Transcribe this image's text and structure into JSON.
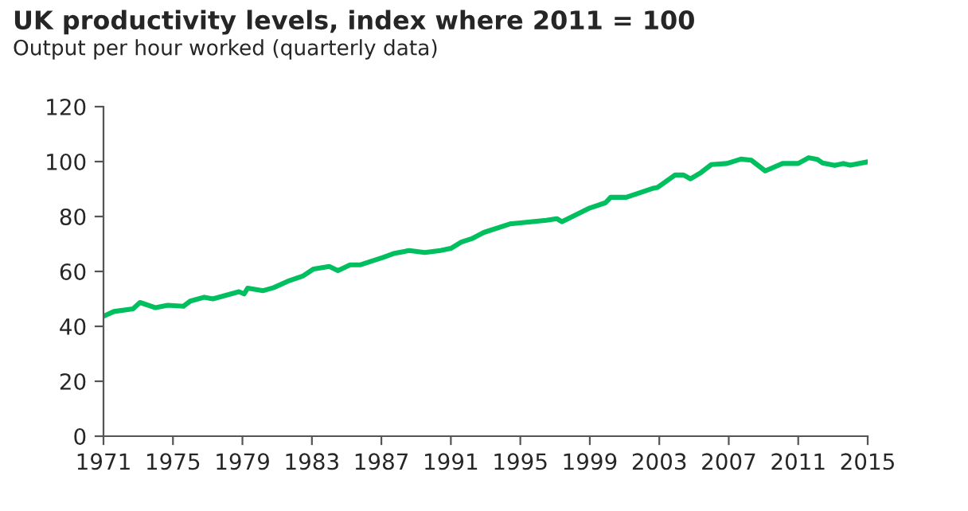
{
  "chart_data": {
    "type": "line",
    "title": "UK productivity levels, index where 2011 = 100",
    "subtitle": "Output per hour worked (quarterly data)",
    "xlim": [
      1971,
      2015
    ],
    "xticks": [
      1971,
      1975,
      1979,
      1983,
      1987,
      1991,
      1995,
      1999,
      2003,
      2007,
      2011,
      2015
    ],
    "ylim": [
      0,
      120
    ],
    "yticks": [
      0,
      20,
      40,
      60,
      80,
      100,
      120
    ],
    "grid": false,
    "marker": "none",
    "line_style": "solid",
    "series": [
      {
        "color": "#00bf5f",
        "x": [
          1971.0,
          1971.6,
          1972.7,
          1973.1,
          1974.0,
          1974.7,
          1975.6,
          1976.0,
          1976.8,
          1977.3,
          1978.8,
          1979.1,
          1979.3,
          1980.2,
          1980.8,
          1981.6,
          1982.5,
          1983.1,
          1984.0,
          1984.5,
          1985.2,
          1985.8,
          1987.1,
          1987.7,
          1988.6,
          1989.5,
          1990.4,
          1991.0,
          1991.6,
          1992.2,
          1992.9,
          1994.4,
          1995.0,
          1996.5,
          1997.1,
          1997.4,
          1999.0,
          1999.9,
          2000.2,
          2001.1,
          2002.6,
          2002.9,
          2003.9,
          2004.4,
          2004.8,
          2005.4,
          2006.0,
          2006.9,
          2007.7,
          2008.3,
          2009.1,
          2010.1,
          2011.0,
          2011.6,
          2012.1,
          2012.4,
          2013.1,
          2013.6,
          2014.0,
          2015.0
        ],
        "values": [
          43.7,
          45.4,
          46.4,
          48.7,
          46.8,
          47.7,
          47.3,
          49.2,
          50.6,
          50.0,
          52.6,
          51.8,
          53.9,
          53.0,
          54.1,
          56.4,
          58.4,
          60.9,
          61.8,
          60.3,
          62.4,
          62.4,
          65.1,
          66.5,
          67.6,
          66.9,
          67.6,
          68.4,
          70.7,
          71.9,
          74.2,
          77.3,
          77.7,
          78.6,
          79.2,
          78.1,
          83.1,
          85.0,
          87.0,
          87.0,
          90.2,
          90.6,
          95.1,
          95.1,
          93.7,
          96.0,
          98.9,
          99.3,
          100.9,
          100.5,
          96.6,
          99.3,
          99.3,
          101.4,
          100.8,
          99.5,
          98.6,
          99.3,
          98.7,
          99.9
        ]
      }
    ]
  }
}
